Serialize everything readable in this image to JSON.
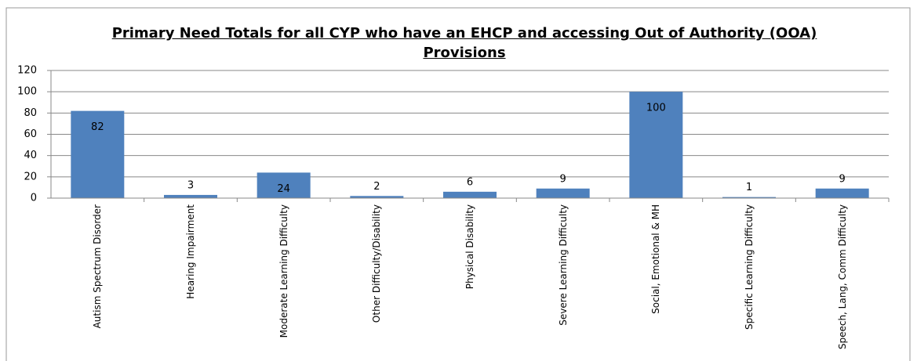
{
  "chart_data": {
    "type": "bar",
    "title": "Primary Need Totals for all CYP who have an EHCP and accessing Out of Authority (OOA) Provisions",
    "categories": [
      "Autism Spectrum Disorder",
      "Hearing Impairment",
      "Moderate Learning Difficulty",
      "Other Difficulty/Disability",
      "Physical Disability",
      "Severe Learning Difficulty",
      "Social, Emotional & MH",
      "Specific Learning Difficulty",
      "Speech, Lang, Comm Difficulty"
    ],
    "values": [
      82,
      3,
      24,
      2,
      6,
      9,
      100,
      1,
      9
    ],
    "color": "#4f81bd",
    "ylim": [
      0,
      120
    ],
    "yticks": [
      0,
      20,
      40,
      60,
      80,
      100,
      120
    ],
    "grid": true
  }
}
